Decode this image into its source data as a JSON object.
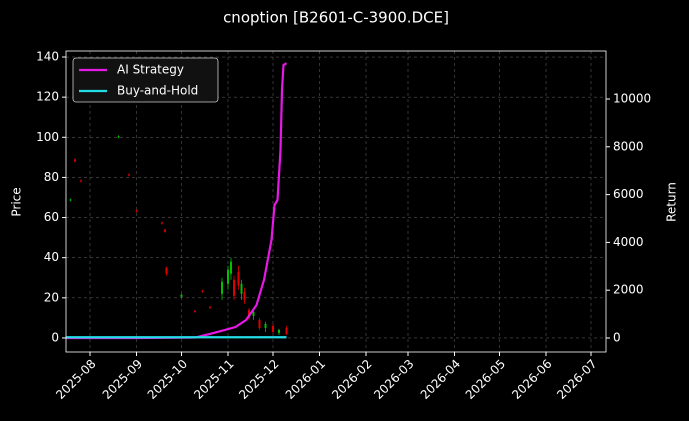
{
  "chart_data": {
    "type": "candlestick",
    "title": "cnoption [B2601-C-3900.DCE]",
    "ylabel": "Price",
    "y2label": "Return",
    "xlim": [
      "2025-07-16",
      "2026-07-11"
    ],
    "xticks": [
      {
        "value": "2025-08-01",
        "label": "2025-08"
      },
      {
        "value": "2025-09-01",
        "label": "2025-09"
      },
      {
        "value": "2025-10-01",
        "label": "2025-10"
      },
      {
        "value": "2025-11-01",
        "label": "2025-11"
      },
      {
        "value": "2025-12-01",
        "label": "2025-12"
      },
      {
        "value": "2026-01-01",
        "label": "2026-01"
      },
      {
        "value": "2026-02-01",
        "label": "2026-02"
      },
      {
        "value": "2026-03-01",
        "label": "2026-03"
      },
      {
        "value": "2026-04-01",
        "label": "2026-04"
      },
      {
        "value": "2026-05-01",
        "label": "2026-05"
      },
      {
        "value": "2026-06-01",
        "label": "2026-06"
      },
      {
        "value": "2026-07-01",
        "label": "2026-07"
      }
    ],
    "ylim": [
      -7,
      143
    ],
    "yticks": [
      0,
      20,
      40,
      60,
      80,
      100,
      120,
      140
    ],
    "y2lim": [
      -586,
      12008
    ],
    "y2ticks": [
      0,
      2000,
      4000,
      6000,
      8000,
      10000
    ],
    "grid": true,
    "legend": "upper left",
    "up_color": "#00c000",
    "down_color": "#e00000",
    "candles": {
      "x": [
        "2025-07-19",
        "2025-07-22",
        "2025-07-26",
        "2025-08-20",
        "2025-08-27",
        "2025-09-01",
        "2025-09-18",
        "2025-09-20",
        "2025-09-21",
        "2025-10-01",
        "2025-10-10",
        "2025-10-15",
        "2025-10-20",
        "2025-10-28",
        "2025-11-01",
        "2025-11-03",
        "2025-11-05",
        "2025-11-08",
        "2025-11-10",
        "2025-11-12",
        "2025-11-15",
        "2025-11-18",
        "2025-11-22",
        "2025-11-26",
        "2025-12-01",
        "2025-12-05",
        "2025-12-10"
      ],
      "open": [
        68.5,
        89,
        78.5,
        100,
        81.5,
        63.5,
        57.5,
        54,
        35,
        20.5,
        13.5,
        23.5,
        15.5,
        22,
        27,
        32,
        29,
        33,
        22,
        23,
        14,
        11,
        9,
        5,
        6,
        2.5,
        5
      ],
      "high": [
        69.5,
        89.5,
        79,
        101,
        82,
        64,
        58,
        54.5,
        35.5,
        22,
        14,
        24,
        16,
        30,
        36,
        40,
        31,
        36,
        29,
        25,
        15,
        14,
        10,
        8,
        7,
        4.5,
        6
      ],
      "low": [
        68,
        87.5,
        77.5,
        99.5,
        80.5,
        62.5,
        56.5,
        52.5,
        31,
        20,
        12.5,
        22.5,
        14.5,
        19,
        24,
        29,
        19,
        24,
        19,
        17,
        9,
        9,
        4,
        3,
        2.5,
        1.5,
        1.5
      ],
      "close": [
        69,
        88,
        78,
        100.5,
        81,
        63,
        57,
        53,
        32,
        21.5,
        13,
        23,
        15,
        28,
        34,
        38,
        21,
        26,
        27,
        19,
        10,
        13,
        5,
        7,
        3,
        4,
        2
      ]
    },
    "series": [
      {
        "name": "AI Strategy",
        "color": "#e619e6",
        "axis": "y2",
        "x": [
          "2025-07-16",
          "2025-09-01",
          "2025-10-10",
          "2025-10-20",
          "2025-10-30",
          "2025-11-06",
          "2025-11-13",
          "2025-11-20",
          "2025-11-25",
          "2025-11-30",
          "2025-12-02",
          "2025-12-04",
          "2025-12-06",
          "2025-12-07",
          "2025-12-08",
          "2025-12-10"
        ],
        "values": [
          0,
          0,
          20,
          170,
          335,
          460,
          750,
          1380,
          2430,
          4100,
          5560,
          5770,
          7870,
          10380,
          11420,
          11500
        ]
      },
      {
        "name": "Buy-and-Hold",
        "color": "#22dde6",
        "axis": "y2",
        "x": [
          "2025-07-16",
          "2025-09-01",
          "2025-10-10",
          "2025-10-20",
          "2025-10-30",
          "2025-11-06",
          "2025-11-13",
          "2025-11-20",
          "2025-11-25",
          "2025-11-30",
          "2025-12-02",
          "2025-12-04",
          "2025-12-06",
          "2025-12-07",
          "2025-12-08",
          "2025-12-10"
        ],
        "values": [
          30,
          30,
          30,
          30,
          30,
          30,
          30,
          30,
          30,
          30,
          30,
          30,
          30,
          30,
          30,
          30
        ]
      }
    ]
  }
}
